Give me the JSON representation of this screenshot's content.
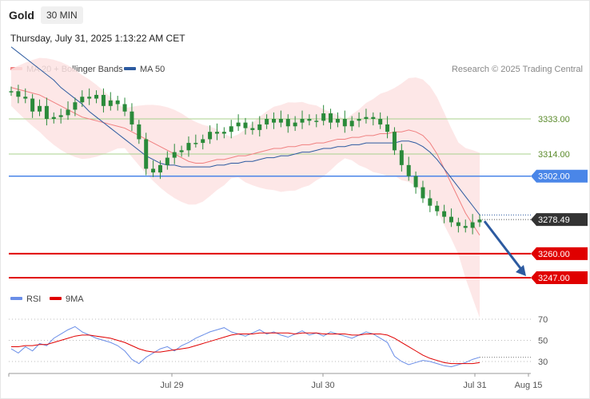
{
  "header": {
    "instrument": "Gold",
    "timeframe": "30 MIN",
    "timestamp": "Thursday, July 31, 2025 1:13:22 AM CET"
  },
  "legend": {
    "ma20_bollinger": "MA 20 + Bollinger Bands",
    "ma50": "MA 50",
    "credit": "Research © 2025 Trading Central",
    "rsi": "RSI",
    "rsi_ma": "9MA"
  },
  "colors": {
    "ma20": "#f08080",
    "ma50": "#2c5aa0",
    "bollinger_fill": "#fde3e3",
    "candle": "#2a8a3a",
    "pivot_line": "#4a86e8",
    "resistance_line": "#a8d08d",
    "support_line": "#e00000",
    "current_price_tag": "#333333",
    "forecast_arrow": "#2c5aa0",
    "rsi_line": "#6a8ee8",
    "rsi_ma_line": "#e00000"
  },
  "chart_data": [
    {
      "type": "candlestick",
      "title": "Gold",
      "price_levels": [
        {
          "value": 3333.0,
          "label": "3333.00",
          "kind": "resistance"
        },
        {
          "value": 3314.0,
          "label": "3314.00",
          "kind": "resistance"
        },
        {
          "value": 3302.0,
          "label": "3302.00",
          "kind": "pivot"
        },
        {
          "value": 3278.49,
          "label": "3278.49",
          "kind": "last"
        },
        {
          "value": 3260.0,
          "label": "3260.00",
          "kind": "support"
        },
        {
          "value": 3247.0,
          "label": "3247.00",
          "kind": "support"
        }
      ],
      "x_ticks": [
        "Jul 29",
        "Jul 30",
        "Jul 31",
        "Aug 15"
      ],
      "forecast": {
        "direction": "down",
        "from": 3278.49,
        "to": 3247.0
      },
      "series": [
        {
          "name": "MA 20 + Bollinger Bands",
          "ma": [
            3350,
            3349,
            3348,
            3347,
            3346,
            3344,
            3342,
            3340,
            3338,
            3336,
            3334,
            3333,
            3332,
            3331,
            3330,
            3329,
            3328,
            3326,
            3324,
            3322,
            3320,
            3318,
            3316,
            3314,
            3312,
            3310,
            3309,
            3309,
            3310,
            3311,
            3311,
            3312,
            3313,
            3313,
            3314,
            3315,
            3316,
            3317,
            3317,
            3318,
            3318,
            3319,
            3319,
            3320,
            3320,
            3321,
            3322,
            3322,
            3323,
            3323,
            3324,
            3324,
            3325,
            3325,
            3326,
            3326,
            3327,
            3326,
            3324,
            3320,
            3314,
            3306,
            3298,
            3290,
            3282,
            3276,
            3270
          ]
        },
        {
          "name": "MA 50",
          "ma": [
            3372,
            3369,
            3366,
            3363,
            3360,
            3357,
            3354,
            3350,
            3347,
            3344,
            3341,
            3337,
            3334,
            3331,
            3328,
            3325,
            3322,
            3319,
            3316,
            3313,
            3311,
            3309,
            3308,
            3308,
            3307,
            3307,
            3307,
            3307,
            3307,
            3308,
            3308,
            3309,
            3309,
            3310,
            3310,
            3311,
            3312,
            3312,
            3313,
            3313,
            3314,
            3315,
            3315,
            3316,
            3317,
            3317,
            3318,
            3318,
            3319,
            3319,
            3320,
            3320,
            3320,
            3320,
            3320,
            3321,
            3321,
            3320,
            3318,
            3315,
            3311,
            3306,
            3301,
            3296,
            3291,
            3286,
            3281
          ]
        },
        {
          "name": "Price",
          "values": [
            3348,
            3345,
            3344,
            3337,
            3340,
            3333,
            3334,
            3335,
            3338,
            3342,
            3345,
            3344,
            3346,
            3340,
            3343,
            3341,
            3337,
            3330,
            3322,
            3306,
            3304,
            3308,
            3312,
            3315,
            3316,
            3320,
            3320,
            3322,
            3326,
            3325,
            3326,
            3329,
            3331,
            3328,
            3327,
            3330,
            3333,
            3331,
            3333,
            3329,
            3331,
            3333,
            3332,
            3332,
            3336,
            3331,
            3333,
            3329,
            3332,
            3333,
            3334,
            3333,
            3330,
            3326,
            3316,
            3308,
            3302,
            3296,
            3290,
            3286,
            3283,
            3280,
            3277,
            3275,
            3274,
            3277,
            3278.49
          ]
        }
      ]
    },
    {
      "type": "line",
      "title": "RSI",
      "ylim": [
        20,
        80
      ],
      "y_ticks": [
        70,
        50,
        30
      ],
      "series": [
        {
          "name": "RSI",
          "values": [
            42,
            38,
            44,
            40,
            47,
            45,
            52,
            56,
            60,
            63,
            58,
            55,
            52,
            50,
            48,
            45,
            40,
            32,
            28,
            34,
            38,
            42,
            44,
            40,
            45,
            48,
            52,
            55,
            58,
            60,
            62,
            58,
            56,
            54,
            57,
            60,
            56,
            58,
            55,
            53,
            56,
            59,
            55,
            57,
            54,
            58,
            56,
            54,
            52,
            55,
            58,
            56,
            52,
            48,
            35,
            30,
            27,
            29,
            31,
            30,
            28,
            26,
            25,
            27,
            29,
            32,
            34
          ]
        },
        {
          "name": "9MA",
          "values": [
            44,
            44,
            45,
            45,
            46,
            46,
            48,
            50,
            52,
            54,
            55,
            55,
            54,
            53,
            52,
            50,
            48,
            45,
            42,
            40,
            39,
            39,
            40,
            41,
            42,
            43,
            45,
            47,
            49,
            51,
            53,
            55,
            56,
            56,
            56,
            57,
            57,
            57,
            57,
            57,
            56,
            57,
            57,
            57,
            56,
            56,
            56,
            56,
            55,
            55,
            56,
            56,
            56,
            55,
            52,
            48,
            44,
            40,
            36,
            33,
            31,
            29,
            28,
            28,
            28,
            28,
            29
          ]
        }
      ]
    }
  ]
}
